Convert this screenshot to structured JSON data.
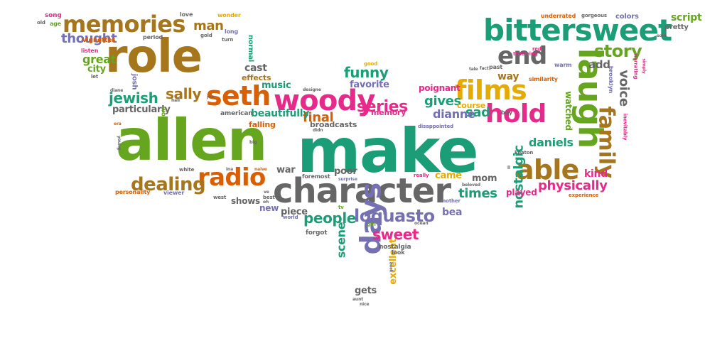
{
  "colors": {
    "teal": "#1b9e77",
    "brown": "#a6761d",
    "orange": "#d95f02",
    "pink": "#e7298a",
    "purple": "#7570b3",
    "green": "#66a61e",
    "yellow": "#e6ab02",
    "gray": "#666666"
  },
  "words": [
    {
      "text": "make",
      "color": "teal"
    },
    {
      "text": "allen",
      "color": "green"
    },
    {
      "text": "role",
      "color": "brown"
    },
    {
      "text": "character",
      "color": "gray"
    },
    {
      "text": "bittersweet",
      "color": "teal"
    },
    {
      "text": "memories",
      "color": "brown"
    },
    {
      "text": "woody",
      "color": "pink"
    },
    {
      "text": "seth",
      "color": "orange"
    },
    {
      "text": "films",
      "color": "yellow"
    },
    {
      "text": "laugh",
      "color": "green"
    },
    {
      "text": "hold",
      "color": "pink"
    },
    {
      "text": "end",
      "color": "gray"
    },
    {
      "text": "able",
      "color": "brown"
    },
    {
      "text": "radio",
      "color": "orange"
    },
    {
      "text": "days",
      "color": "purple"
    },
    {
      "text": "family",
      "color": "brown"
    },
    {
      "text": "story",
      "color": "green"
    },
    {
      "text": "dealing",
      "color": "brown"
    },
    {
      "text": "series",
      "color": "pink"
    },
    {
      "text": "loquasto",
      "color": "purple"
    },
    {
      "text": "jewish",
      "color": "teal"
    },
    {
      "text": "sally",
      "color": "brown"
    },
    {
      "text": "funny",
      "color": "teal"
    },
    {
      "text": "thought",
      "color": "purple"
    },
    {
      "text": "man",
      "color": "brown"
    },
    {
      "text": "nostalgic",
      "color": "teal"
    },
    {
      "text": "physically",
      "color": "pink"
    },
    {
      "text": "people",
      "color": "teal"
    },
    {
      "text": "sweet",
      "color": "pink"
    },
    {
      "text": "times",
      "color": "teal"
    },
    {
      "text": "voice",
      "color": "gray"
    },
    {
      "text": "scene",
      "color": "teal"
    },
    {
      "text": "final",
      "color": "orange"
    },
    {
      "text": "sad",
      "color": "teal"
    },
    {
      "text": "gives",
      "color": "teal"
    },
    {
      "text": "dianne",
      "color": "purple"
    },
    {
      "text": "daniels",
      "color": "teal"
    },
    {
      "text": "particularly",
      "color": "gray"
    },
    {
      "text": "beautifully",
      "color": "teal"
    },
    {
      "text": "poignant",
      "color": "pink"
    },
    {
      "text": "course",
      "color": "yellow"
    },
    {
      "text": "way",
      "color": "brown"
    },
    {
      "text": "cast",
      "color": "gray"
    },
    {
      "text": "great",
      "color": "green"
    },
    {
      "text": "city",
      "color": "green"
    },
    {
      "text": "favorite",
      "color": "purple"
    },
    {
      "text": "music",
      "color": "teal"
    },
    {
      "text": "effects",
      "color": "brown"
    },
    {
      "text": "add",
      "color": "gray"
    },
    {
      "text": "played",
      "color": "pink"
    },
    {
      "text": "kind",
      "color": "pink"
    },
    {
      "text": "mom",
      "color": "gray"
    },
    {
      "text": "came",
      "color": "yellow"
    },
    {
      "text": "war",
      "color": "gray"
    },
    {
      "text": "poor",
      "color": "gray"
    },
    {
      "text": "piece",
      "color": "gray"
    },
    {
      "text": "bea",
      "color": "purple"
    },
    {
      "text": "shows",
      "color": "gray"
    },
    {
      "text": "new",
      "color": "purple"
    },
    {
      "text": "excellent",
      "color": "yellow"
    },
    {
      "text": "gets",
      "color": "gray"
    },
    {
      "text": "memory",
      "color": "pink"
    },
    {
      "text": "broadcasts",
      "color": "gray"
    },
    {
      "text": "falling",
      "color": "orange"
    },
    {
      "text": "watched",
      "color": "green"
    },
    {
      "text": "script",
      "color": "green"
    },
    {
      "text": "colors",
      "color": "purple"
    },
    {
      "text": "underrated",
      "color": "orange"
    },
    {
      "text": "pretty",
      "color": "gray"
    },
    {
      "text": "song",
      "color": "pink"
    },
    {
      "text": "age",
      "color": "green"
    },
    {
      "text": "old",
      "color": "gray"
    },
    {
      "text": "vignettes",
      "color": "orange"
    },
    {
      "text": "love",
      "color": "gray"
    },
    {
      "text": "wonder",
      "color": "yellow"
    },
    {
      "text": "period",
      "color": "gray"
    },
    {
      "text": "long",
      "color": "purple"
    },
    {
      "text": "gold",
      "color": "gray"
    },
    {
      "text": "normal",
      "color": "teal"
    },
    {
      "text": "turn",
      "color": "gray"
    },
    {
      "text": "listen",
      "color": "pink"
    },
    {
      "text": "let",
      "color": "gray"
    },
    {
      "text": "josh",
      "color": "purple"
    },
    {
      "text": "american",
      "color": "gray"
    },
    {
      "text": "wonderful",
      "color": "green"
    },
    {
      "text": "personality",
      "color": "orange"
    },
    {
      "text": "viewer",
      "color": "purple"
    },
    {
      "text": "white",
      "color": "gray"
    },
    {
      "text": "forgot",
      "color": "gray"
    },
    {
      "text": "nostalgia",
      "color": "gray"
    },
    {
      "text": "look",
      "color": "gray"
    },
    {
      "text": "foremost",
      "color": "gray"
    },
    {
      "text": "mother",
      "color": "purple"
    },
    {
      "text": "good",
      "color": "yellow"
    },
    {
      "text": "past",
      "color": "gray"
    },
    {
      "text": "warm",
      "color": "purple"
    },
    {
      "text": "similarity",
      "color": "orange"
    },
    {
      "text": "brooklyn",
      "color": "purple"
    },
    {
      "text": "narrating",
      "color": "pink"
    },
    {
      "text": "inevitably",
      "color": "pink"
    },
    {
      "text": "experience",
      "color": "orange"
    },
    {
      "text": "boy",
      "color": "gray"
    },
    {
      "text": "disappointed",
      "color": "purple"
    },
    {
      "text": "truelving",
      "color": "pink"
    },
    {
      "text": "gorgeous",
      "color": "gray"
    },
    {
      "text": "keaton",
      "color": "gray"
    },
    {
      "text": "really",
      "color": "pink"
    },
    {
      "text": "best",
      "color": "gray"
    },
    {
      "text": "west",
      "color": "gray"
    },
    {
      "text": "girl",
      "color": "green"
    },
    {
      "text": "world",
      "color": "purple"
    },
    {
      "text": "tv",
      "color": "green"
    },
    {
      "text": "surprise",
      "color": "purple"
    },
    {
      "text": "beloved",
      "color": "gray"
    },
    {
      "text": "era",
      "color": "orange"
    },
    {
      "text": "naive",
      "color": "orange"
    },
    {
      "text": "big",
      "color": "gray"
    },
    {
      "text": "ve",
      "color": "gray"
    },
    {
      "text": "oh",
      "color": "gray"
    },
    {
      "text": "fact",
      "color": "gray"
    },
    {
      "text": "tale",
      "color": "gray"
    },
    {
      "text": "red",
      "color": "pink"
    },
    {
      "text": "ocean",
      "color": "gray"
    },
    {
      "text": "zuck",
      "color": "purple"
    },
    {
      "text": "nice",
      "color": "gray"
    },
    {
      "text": "aunt",
      "color": "gray"
    },
    {
      "text": "simply",
      "color": "pink"
    },
    {
      "text": "sold",
      "color": "gray"
    },
    {
      "text": "hall",
      "color": "gray"
    },
    {
      "text": "diane",
      "color": "gray"
    },
    {
      "text": "designe",
      "color": "gray"
    },
    {
      "text": "didn",
      "color": "gray"
    },
    {
      "text": "joe",
      "color": "gray"
    },
    {
      "text": "ll",
      "color": "gray"
    },
    {
      "text": "young",
      "color": "gray"
    },
    {
      "text": "ina",
      "color": "gray"
    }
  ]
}
